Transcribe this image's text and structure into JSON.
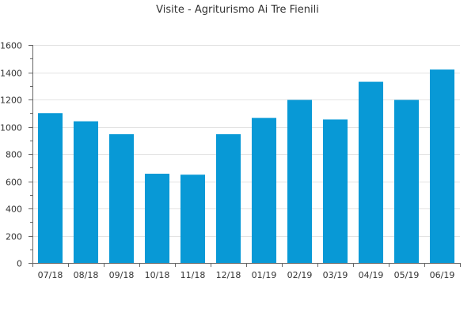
{
  "chart_data": {
    "type": "bar",
    "title": "Visite - Agriturismo Ai Tre Fienili",
    "categories": [
      "07/18",
      "08/18",
      "09/18",
      "10/18",
      "11/18",
      "12/18",
      "01/19",
      "02/19",
      "03/19",
      "04/19",
      "05/19",
      "06/19"
    ],
    "values": [
      1100,
      1040,
      945,
      655,
      648,
      945,
      1065,
      1197,
      1053,
      1330,
      1197,
      1420
    ],
    "xlabel": "",
    "ylabel": "",
    "ylim": [
      0,
      1600
    ],
    "yticks": [
      0,
      200,
      400,
      600,
      800,
      1000,
      1200,
      1400,
      1600
    ],
    "grid": true,
    "legend": "none",
    "colors": {
      "bar": "#0899d6",
      "axis": "#666666",
      "grid": "#e3e3e3",
      "text": "#333333"
    }
  }
}
